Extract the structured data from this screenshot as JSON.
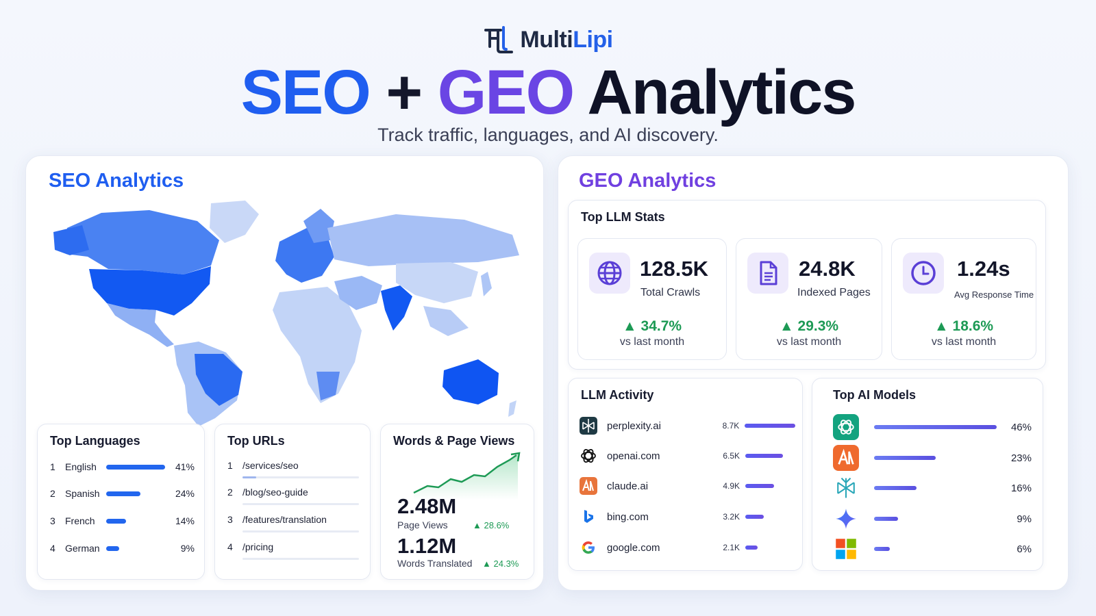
{
  "brand": {
    "name_part1": "Multi",
    "name_part2": "Lipi"
  },
  "hero": {
    "title_seo": "SEO",
    "title_plus": "+",
    "title_geo": "GEO",
    "title_analytics": "Analytics",
    "subtitle": "Track traffic, languages, and AI discovery."
  },
  "seo": {
    "title": "SEO Analytics",
    "top_languages": {
      "title": "Top Languages",
      "items": [
        {
          "rank": "1",
          "name": "English",
          "pct": "41%",
          "value": 41
        },
        {
          "rank": "2",
          "name": "Spanish",
          "pct": "24%",
          "value": 24
        },
        {
          "rank": "3",
          "name": "French",
          "pct": "14%",
          "value": 14
        },
        {
          "rank": "4",
          "name": "German",
          "pct": "9%",
          "value": 9
        }
      ]
    },
    "top_urls": {
      "title": "Top URLs",
      "items": [
        {
          "rank": "1",
          "path": "/services/seo",
          "value": 0.12
        },
        {
          "rank": "2",
          "path": "/blog/seo-guide",
          "value": 0.0
        },
        {
          "rank": "3",
          "path": "/features/translation",
          "value": 0.0
        },
        {
          "rank": "4",
          "path": "/pricing",
          "value": 0.0
        }
      ]
    },
    "words_views": {
      "title": "Words & Page Views",
      "page_views": "2.48M",
      "page_views_label": "Page Views",
      "page_views_trend": "28.6%",
      "words": "1.12M",
      "words_label": "Words Translated",
      "words_trend": "24.3%"
    }
  },
  "geo": {
    "title": "GEO Analytics",
    "llm_stats": {
      "title": "Top LLM Stats",
      "items": [
        {
          "icon": "globe-icon",
          "value": "128.5K",
          "label": "Total Crawls",
          "trend": "34.7%",
          "vs": "vs last month"
        },
        {
          "icon": "document-icon",
          "value": "24.8K",
          "label": "Indexed Pages",
          "trend": "29.3%",
          "vs": "vs last month"
        },
        {
          "icon": "clock-icon",
          "value": "1.24s",
          "label": "Avg Response Time",
          "trend": "18.6%",
          "vs": "vs last month"
        }
      ]
    },
    "activity": {
      "title": "LLM Activity",
      "items": [
        {
          "icon": "perplexity-icon",
          "name": "perplexity.ai",
          "value": "8.7K",
          "num": 8.7
        },
        {
          "icon": "openai-icon",
          "name": "openai.com",
          "value": "6.5K",
          "num": 6.5
        },
        {
          "icon": "claude-icon",
          "name": "claude.ai",
          "value": "4.9K",
          "num": 4.9
        },
        {
          "icon": "bing-icon",
          "name": "bing.com",
          "value": "3.2K",
          "num": 3.2
        },
        {
          "icon": "google-icon",
          "name": "google.com",
          "value": "2.1K",
          "num": 2.1
        }
      ]
    },
    "models": {
      "title": "Top AI Models",
      "items": [
        {
          "icon": "chatgpt-icon",
          "pct": "46%",
          "value": 46
        },
        {
          "icon": "anthropic-icon",
          "pct": "23%",
          "value": 23
        },
        {
          "icon": "perplexity-icon",
          "pct": "16%",
          "value": 16
        },
        {
          "icon": "gemini-icon",
          "pct": "9%",
          "value": 9
        },
        {
          "icon": "microsoft-icon",
          "pct": "6%",
          "value": 6
        }
      ]
    }
  },
  "colors": {
    "seo_blue": "#1f5ef0",
    "geo_purple": "#6a45e4",
    "trend_green": "#1d9a55"
  }
}
